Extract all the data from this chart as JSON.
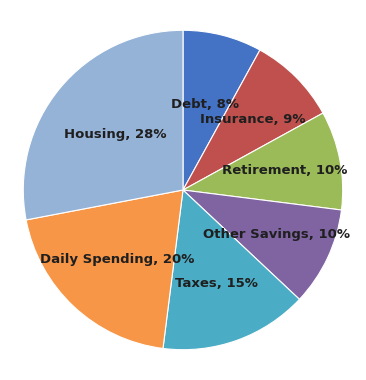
{
  "labels": [
    "Debt",
    "Insurance",
    "Retirement",
    "Other Savings",
    "Taxes",
    "Daily Spending",
    "Housing"
  ],
  "values": [
    8,
    9,
    10,
    10,
    15,
    20,
    28
  ],
  "colors": [
    "#4472C4",
    "#C0504D",
    "#9BBB59",
    "#8064A2",
    "#4BACC6",
    "#F79646",
    "#95B3D7"
  ],
  "background_color": "#FFFFFF",
  "text_color": "#1F1F1F",
  "font_size": 9.5,
  "label_distances": [
    0.55,
    0.62,
    0.65,
    0.65,
    0.62,
    0.6,
    0.55
  ]
}
